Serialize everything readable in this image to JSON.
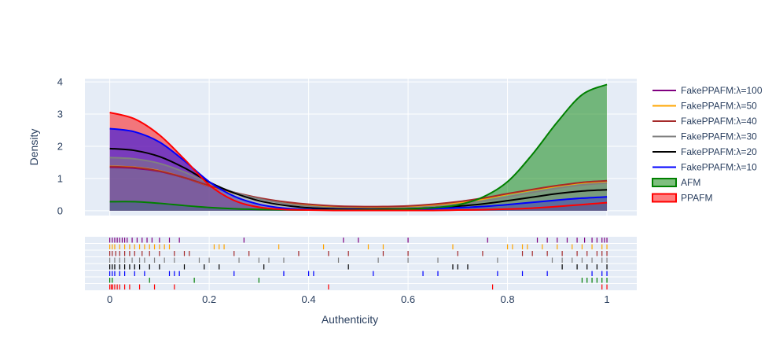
{
  "chart_data": {
    "type": "area",
    "xlabel": "Authenticity",
    "ylabel": "Density",
    "xlim": [
      -0.05,
      1.06
    ],
    "ylim": [
      -0.15,
      4.1
    ],
    "x_ticks": [
      0,
      0.2,
      0.4,
      0.6,
      0.8,
      1
    ],
    "x_tick_labels": [
      "0",
      "0.2",
      "0.4",
      "0.6",
      "0.8",
      "1"
    ],
    "y_ticks": [
      0,
      1,
      2,
      3,
      4
    ],
    "y_tick_labels": [
      "0",
      "1",
      "2",
      "3",
      "4"
    ],
    "grid": true,
    "legend_position": "right",
    "legend": [
      {
        "name": "FakePPAFM:λ=100",
        "color": "#800080",
        "kind": "line"
      },
      {
        "name": "FakePPAFM:λ=50",
        "color": "#ffa500",
        "kind": "line"
      },
      {
        "name": "FakePPAFM:λ=40",
        "color": "#a52a2a",
        "kind": "line"
      },
      {
        "name": "FakePPAFM:λ=30",
        "color": "#808080",
        "kind": "line"
      },
      {
        "name": "FakePPAFM:λ=20",
        "color": "#000000",
        "kind": "line"
      },
      {
        "name": "FakePPAFM:λ=10",
        "color": "#0000ff",
        "kind": "line"
      },
      {
        "name": "AFM",
        "color": "#008000",
        "kind": "area"
      },
      {
        "name": "PPAFM",
        "color": "#ff0000",
        "kind": "area"
      }
    ],
    "x": [
      0,
      0.05,
      0.1,
      0.15,
      0.2,
      0.25,
      0.3,
      0.35,
      0.4,
      0.45,
      0.5,
      0.55,
      0.6,
      0.65,
      0.7,
      0.75,
      0.8,
      0.85,
      0.9,
      0.95,
      1.0
    ],
    "series": [
      {
        "name": "FakePPAFM:λ=100",
        "color": "#800080",
        "fill": false,
        "values": [
          1.35,
          1.32,
          1.22,
          1.02,
          0.76,
          0.55,
          0.38,
          0.25,
          0.17,
          0.12,
          0.1,
          0.1,
          0.12,
          0.17,
          0.25,
          0.37,
          0.52,
          0.65,
          0.77,
          0.87,
          0.92
        ],
        "rug": [
          0.0,
          0.005,
          0.01,
          0.015,
          0.02,
          0.025,
          0.03,
          0.035,
          0.045,
          0.055,
          0.065,
          0.075,
          0.085,
          0.1,
          0.12,
          0.14,
          0.27,
          0.47,
          0.5,
          0.6,
          0.76,
          0.86,
          0.88,
          0.9,
          0.92,
          0.94,
          0.955,
          0.97,
          0.98,
          0.99,
          0.995,
          1.0
        ]
      },
      {
        "name": "FakePPAFM:λ=50",
        "color": "#ffa500",
        "fill": false,
        "values": [
          1.38,
          1.35,
          1.24,
          1.03,
          0.77,
          0.55,
          0.38,
          0.25,
          0.17,
          0.12,
          0.1,
          0.1,
          0.12,
          0.17,
          0.25,
          0.36,
          0.51,
          0.64,
          0.76,
          0.86,
          0.91
        ],
        "rug": [
          0.0,
          0.005,
          0.01,
          0.02,
          0.03,
          0.04,
          0.05,
          0.06,
          0.07,
          0.08,
          0.09,
          0.1,
          0.11,
          0.12,
          0.21,
          0.22,
          0.23,
          0.34,
          0.43,
          0.52,
          0.55,
          0.69,
          0.8,
          0.81,
          0.83,
          0.84,
          0.87,
          0.9,
          0.93,
          0.95,
          0.97,
          0.99,
          1.0
        ]
      },
      {
        "name": "FakePPAFM:λ=40",
        "color": "#a52a2a",
        "fill": false,
        "values": [
          1.37,
          1.34,
          1.23,
          1.03,
          0.78,
          0.57,
          0.4,
          0.28,
          0.2,
          0.15,
          0.13,
          0.13,
          0.15,
          0.2,
          0.28,
          0.39,
          0.53,
          0.66,
          0.78,
          0.88,
          0.93
        ],
        "rug": [
          0.0,
          0.005,
          0.012,
          0.02,
          0.03,
          0.04,
          0.05,
          0.065,
          0.08,
          0.1,
          0.13,
          0.15,
          0.16,
          0.25,
          0.28,
          0.38,
          0.44,
          0.48,
          0.55,
          0.6,
          0.7,
          0.75,
          0.83,
          0.85,
          0.88,
          0.91,
          0.94,
          0.96,
          0.98,
          0.99,
          1.0
        ]
      },
      {
        "name": "FakePPAFM:λ=30",
        "color": "#808080",
        "fill": true,
        "values": [
          1.65,
          1.61,
          1.47,
          1.2,
          0.85,
          0.57,
          0.37,
          0.23,
          0.14,
          0.09,
          0.07,
          0.07,
          0.09,
          0.13,
          0.2,
          0.3,
          0.43,
          0.57,
          0.7,
          0.8,
          0.86
        ],
        "rug": [
          0.0,
          0.01,
          0.02,
          0.03,
          0.045,
          0.06,
          0.07,
          0.09,
          0.11,
          0.13,
          0.18,
          0.2,
          0.26,
          0.3,
          0.32,
          0.35,
          0.46,
          0.54,
          0.6,
          0.66,
          0.78,
          0.89,
          0.91,
          0.93,
          0.95,
          0.97,
          0.99,
          1.0
        ]
      },
      {
        "name": "FakePPAFM:λ=20",
        "color": "#000000",
        "fill": false,
        "values": [
          1.93,
          1.87,
          1.68,
          1.33,
          0.89,
          0.55,
          0.31,
          0.17,
          0.09,
          0.06,
          0.05,
          0.05,
          0.06,
          0.09,
          0.14,
          0.21,
          0.31,
          0.42,
          0.53,
          0.61,
          0.65
        ],
        "rug": [
          0.0,
          0.005,
          0.01,
          0.02,
          0.03,
          0.04,
          0.05,
          0.06,
          0.08,
          0.1,
          0.15,
          0.19,
          0.22,
          0.31,
          0.48,
          0.69,
          0.7,
          0.72,
          0.91,
          0.94,
          0.96,
          0.98,
          1.0
        ]
      },
      {
        "name": "FakePPAFM:λ=10",
        "color": "#0000ff",
        "fill": true,
        "values": [
          2.55,
          2.45,
          2.13,
          1.55,
          0.9,
          0.45,
          0.2,
          0.08,
          0.04,
          0.03,
          0.03,
          0.03,
          0.04,
          0.06,
          0.09,
          0.13,
          0.19,
          0.26,
          0.33,
          0.39,
          0.43
        ],
        "rug": [
          0.0,
          0.005,
          0.01,
          0.02,
          0.03,
          0.05,
          0.07,
          0.12,
          0.13,
          0.14,
          0.25,
          0.35,
          0.4,
          0.41,
          0.53,
          0.63,
          0.66,
          0.78,
          0.83,
          0.88,
          0.97,
          0.99,
          1.0
        ]
      },
      {
        "name": "AFM",
        "color": "#008000",
        "fill": true,
        "values": [
          0.28,
          0.28,
          0.23,
          0.16,
          0.1,
          0.06,
          0.04,
          0.03,
          0.02,
          0.02,
          0.02,
          0.03,
          0.05,
          0.09,
          0.18,
          0.42,
          0.9,
          1.75,
          2.75,
          3.6,
          3.92
        ],
        "rug": [
          0.0,
          0.005,
          0.08,
          0.17,
          0.3,
          0.95,
          0.96,
          0.97,
          0.98,
          0.99,
          1.0
        ]
      },
      {
        "name": "PPAFM",
        "color": "#ff0000",
        "fill": true,
        "values": [
          3.05,
          2.85,
          2.35,
          1.6,
          0.8,
          0.32,
          0.11,
          0.04,
          0.02,
          0.01,
          0.01,
          0.01,
          0.01,
          0.01,
          0.02,
          0.03,
          0.05,
          0.08,
          0.13,
          0.19,
          0.25
        ],
        "rug": [
          0.0,
          0.003,
          0.006,
          0.01,
          0.015,
          0.02,
          0.03,
          0.04,
          0.06,
          0.09,
          0.13,
          0.44,
          0.77,
          0.99,
          1.0
        ]
      }
    ]
  }
}
